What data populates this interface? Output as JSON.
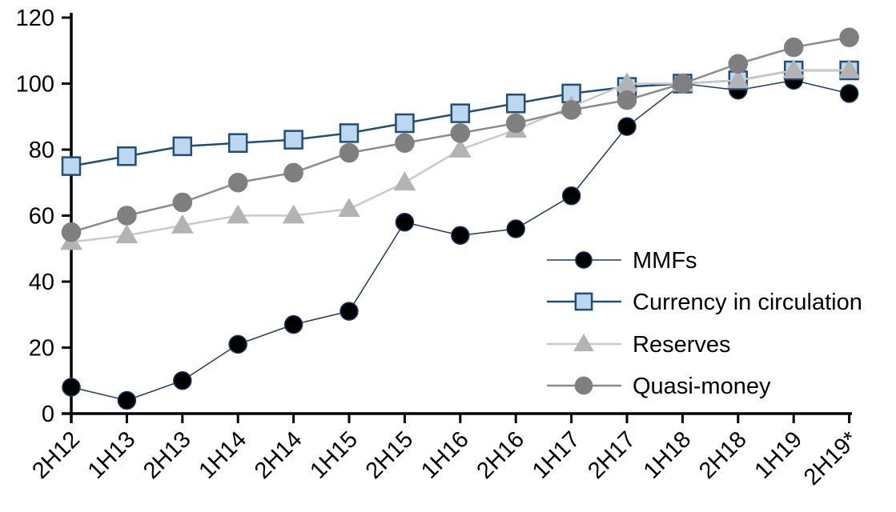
{
  "chart_data": {
    "type": "line",
    "title": "",
    "xlabel": "",
    "ylabel": "",
    "categories": [
      "2H12",
      "1H13",
      "2H13",
      "1H14",
      "2H14",
      "1H15",
      "2H15",
      "1H16",
      "2H16",
      "1H17",
      "2H17",
      "1H18",
      "2H18",
      "1H19",
      "2H19*"
    ],
    "series": [
      {
        "name": "MMFs",
        "marker": "circle",
        "line_color": "#1F3864",
        "line_width": 1.5,
        "marker_fill": "#000000",
        "marker_stroke": "#1F3864",
        "marker_size": 11,
        "values": [
          8,
          4,
          10,
          21,
          27,
          31,
          58,
          54,
          56,
          66,
          87,
          100,
          98,
          101,
          97
        ]
      },
      {
        "name": "Currency in circulation",
        "marker": "square",
        "line_color": "#1F4E79",
        "line_width": 2.5,
        "marker_fill": "#BDD7EE",
        "marker_stroke": "#1F4E79",
        "marker_size": 11,
        "values": [
          75,
          78,
          81,
          82,
          83,
          85,
          88,
          91,
          94,
          97,
          99,
          100,
          101,
          104,
          104
        ]
      },
      {
        "name": "Reserves",
        "marker": "triangle",
        "line_color": "#C9C9C9",
        "line_width": 2.5,
        "marker_fill": "#B3B3B3",
        "marker_stroke": "none",
        "marker_size": 13,
        "values": [
          52,
          54,
          57,
          60,
          60,
          62,
          70,
          80,
          86,
          93,
          100,
          100,
          101,
          104,
          104
        ]
      },
      {
        "name": "Quasi-money",
        "marker": "circle",
        "line_color": "#8C8C8C",
        "line_width": 2.5,
        "marker_fill": "#7F7F7F",
        "marker_stroke": "none",
        "marker_size": 11.5,
        "values": [
          55,
          60,
          64,
          70,
          73,
          79,
          82,
          85,
          88,
          92,
          95,
          100,
          106,
          111,
          114
        ]
      }
    ],
    "y_ticks": [
      0,
      20,
      40,
      60,
      80,
      100,
      120
    ],
    "ylim": [
      0,
      120
    ],
    "grid": false,
    "legend_position": "inside-right",
    "axis_color": "#000000"
  }
}
